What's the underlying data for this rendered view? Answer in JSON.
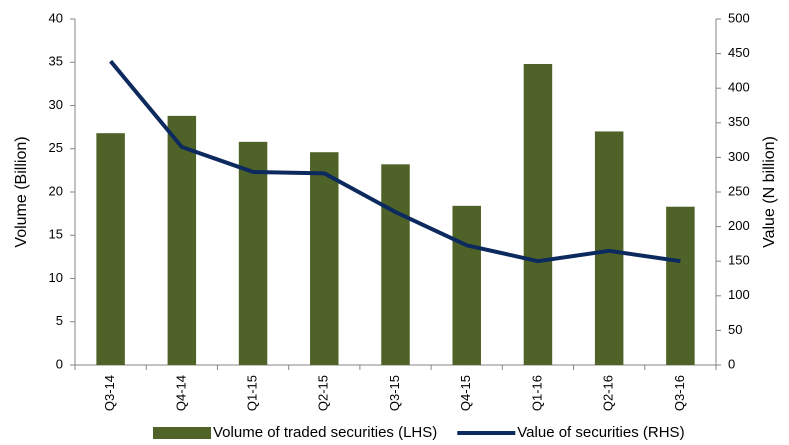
{
  "chart_data": {
    "type": "bar",
    "categories": [
      "Q3-14",
      "Q4-14",
      "Q1-15",
      "Q2-15",
      "Q3-15",
      "Q4-15",
      "Q1-16",
      "Q2-16",
      "Q3-16"
    ],
    "series": [
      {
        "name": "Volume of traded securities (LHS)",
        "type": "bar",
        "color": "#4f6228",
        "values": [
          26.8,
          28.8,
          25.8,
          24.6,
          23.2,
          18.4,
          34.8,
          27.0,
          18.3
        ]
      },
      {
        "name": "Value of securities (RHS)",
        "type": "line",
        "axis": "y2",
        "color": "#0c2a5e",
        "values": [
          439,
          315,
          279,
          277,
          221,
          173,
          150,
          165,
          150
        ]
      }
    ],
    "ylabel": "Volume (Billion)",
    "y2label": "Value (N billion)",
    "ylim": [
      0,
      40
    ],
    "yticks": [
      0,
      5,
      10,
      15,
      20,
      25,
      30,
      35,
      40
    ],
    "y2lim": [
      0,
      500
    ],
    "y2ticks": [
      0,
      50,
      100,
      150,
      200,
      250,
      300,
      350,
      400,
      450,
      500
    ],
    "grid": false,
    "legend": "bottom"
  }
}
